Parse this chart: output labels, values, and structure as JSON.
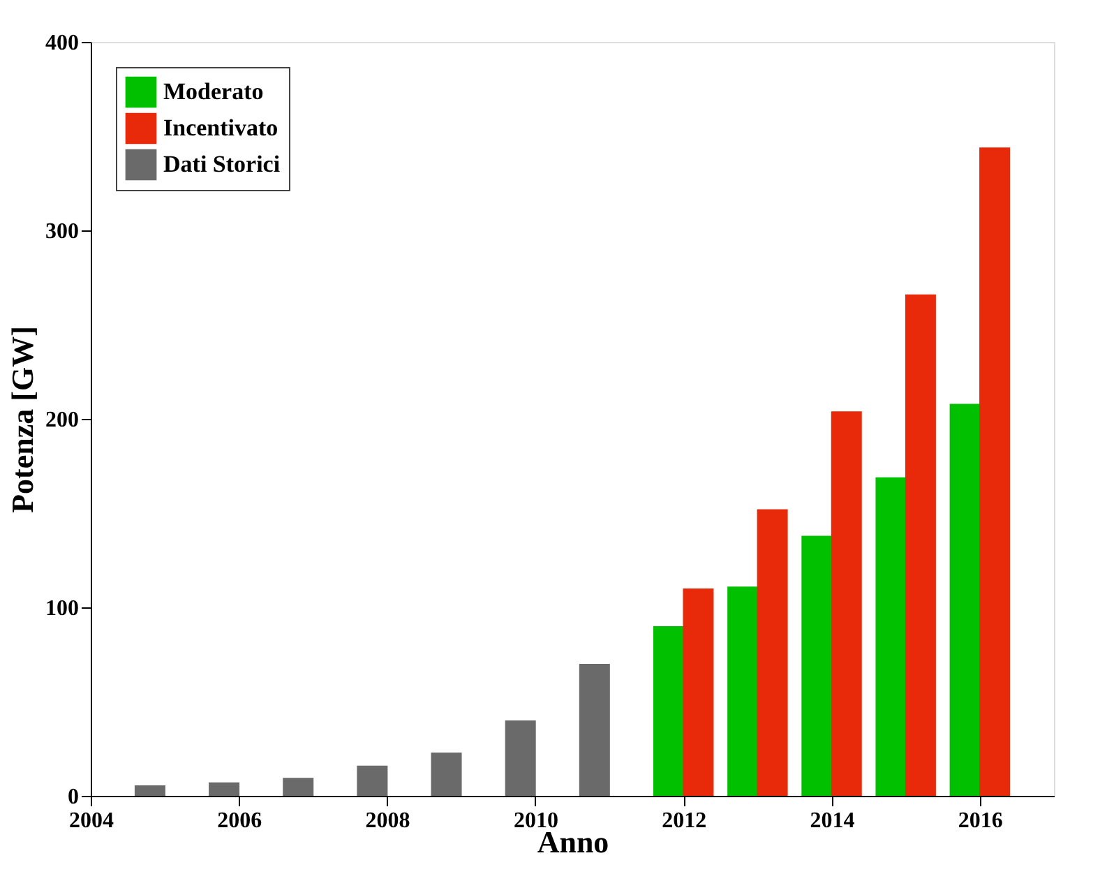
{
  "chart_data": {
    "type": "bar",
    "xlabel": "Anno",
    "ylabel": "Potenza [GW]",
    "series": [
      {
        "name": "Moderato",
        "color": "#00c000",
        "x": [
          2011.8,
          2012.8,
          2013.8,
          2014.8,
          2015.8
        ],
        "values": [
          90,
          111,
          138,
          169,
          208
        ]
      },
      {
        "name": "Incentivato",
        "color": "#e82a0a",
        "x": [
          2012.2,
          2013.2,
          2014.2,
          2015.2,
          2016.2
        ],
        "values": [
          110,
          152,
          204,
          266,
          344
        ]
      },
      {
        "name": "Dati Storici",
        "color": "#6a6a6a",
        "x": [
          2004.8,
          2005.8,
          2006.8,
          2007.8,
          2008.8,
          2009.8,
          2010.8
        ],
        "values": [
          5.6,
          7.1,
          9.5,
          16,
          23,
          40,
          70
        ]
      }
    ],
    "xlim": [
      2004,
      2017
    ],
    "xticks": [
      2004,
      2006,
      2008,
      2010,
      2012,
      2014,
      2016
    ],
    "ylim": [
      0,
      400
    ],
    "yticks": [
      0,
      100,
      200,
      300,
      400
    ],
    "grid": false,
    "legend": "top left"
  }
}
